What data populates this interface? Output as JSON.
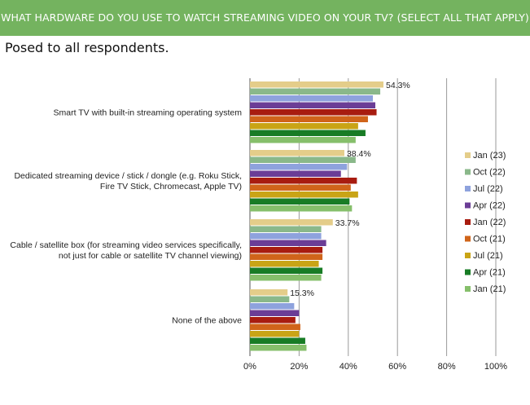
{
  "header": {
    "title": "WHAT HARDWARE DO YOU USE TO WATCH STREAMING VIDEO ON YOUR TV? (SELECT ALL THAT APPLY)",
    "subtitle": "Posed to all respondents."
  },
  "chart_data": {
    "type": "bar",
    "orientation": "horizontal",
    "categories": [
      [
        "Smart TV with built-in streaming operating system"
      ],
      [
        "Dedicated streaming device / stick / dongle (e.g. Roku Stick,",
        "Fire TV Stick, Chromecast, Apple TV)"
      ],
      [
        "Cable / satellite box (for streaming video services specifically,",
        "not just for cable or satellite TV channel viewing)"
      ],
      [
        "None of the above"
      ]
    ],
    "x_ticks": [
      "0%",
      "20%",
      "40%",
      "60%",
      "80%",
      "100%"
    ],
    "xlim": [
      0,
      100
    ],
    "grid": true,
    "legend_position": "right",
    "value_labels": [
      "54.3%",
      "38.4%",
      "33.7%",
      "15.3%"
    ],
    "series": [
      {
        "name": "Jan (23)",
        "color": "#e4cd8a",
        "values": [
          54.3,
          38.4,
          33.7,
          15.3
        ]
      },
      {
        "name": "Oct (22)",
        "color": "#8ab88a",
        "values": [
          53.0,
          43.0,
          29.0,
          16.0
        ]
      },
      {
        "name": "Jul (22)",
        "color": "#8ea2dd",
        "values": [
          50.0,
          39.5,
          29.0,
          18.0
        ]
      },
      {
        "name": "Apr (22)",
        "color": "#6b3d96",
        "values": [
          51.0,
          37.0,
          31.0,
          20.0
        ]
      },
      {
        "name": "Jan (22)",
        "color": "#a81c10",
        "values": [
          51.5,
          43.5,
          29.5,
          18.5
        ]
      },
      {
        "name": "Oct (21)",
        "color": "#d0641a",
        "values": [
          48.0,
          41.0,
          29.5,
          20.5
        ]
      },
      {
        "name": "Jul (21)",
        "color": "#c9a416",
        "values": [
          44.0,
          44.0,
          28.0,
          20.0
        ]
      },
      {
        "name": "Apr (21)",
        "color": "#187c25",
        "values": [
          47.0,
          40.5,
          29.5,
          22.5
        ]
      },
      {
        "name": "Jan (21)",
        "color": "#86bf6b",
        "values": [
          43.0,
          41.5,
          29.0,
          23.0
        ]
      }
    ]
  }
}
